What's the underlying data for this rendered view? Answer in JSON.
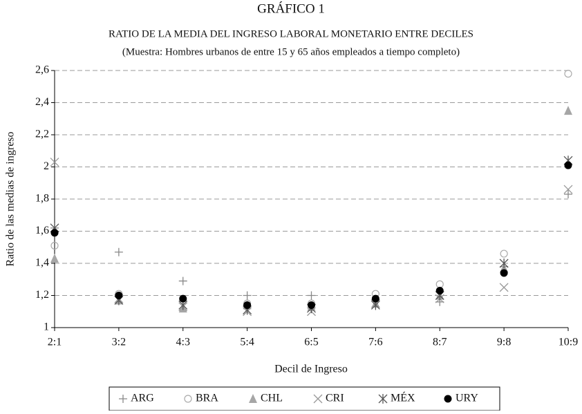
{
  "chart_data": {
    "type": "scatter",
    "title": "GRÁFICO 1",
    "subtitle": "RATIO DE LA MEDIA DEL INGRESO LABORAL MONETARIO ENTRE DECILES",
    "note": "(Muestra: Hombres urbanos de entre 15 y 65 años empleados a tiempo completo)",
    "x_label": "Decil de Ingreso",
    "y_label": "Ratio de las medias de ingreso",
    "categories": [
      "2:1",
      "3:2",
      "4:3",
      "5:4",
      "6:5",
      "7:6",
      "8:7",
      "9:8",
      "10:9"
    ],
    "series": [
      {
        "name": "ARG",
        "color": "#888888",
        "marker": "plus",
        "values": [
          1.62,
          1.47,
          1.29,
          1.2,
          1.2,
          1.17,
          1.16,
          1.38,
          1.83
        ]
      },
      {
        "name": "BRA",
        "color": "#aaaaaa",
        "marker": "circle-open",
        "values": [
          1.51,
          1.21,
          1.17,
          1.15,
          1.15,
          1.21,
          1.27,
          1.46,
          2.58
        ]
      },
      {
        "name": "CHL",
        "color": "#a6a6a6",
        "marker": "triangle",
        "values": [
          1.43,
          1.17,
          1.12,
          1.14,
          1.13,
          1.15,
          1.2,
          1.37,
          2.35
        ]
      },
      {
        "name": "CRI",
        "color": "#999999",
        "marker": "cross",
        "values": [
          2.03,
          1.18,
          1.13,
          1.1,
          1.1,
          1.15,
          1.18,
          1.25,
          1.86
        ]
      },
      {
        "name": "MÉX",
        "color": "#555555",
        "marker": "asterisk",
        "values": [
          1.62,
          1.17,
          1.14,
          1.11,
          1.12,
          1.14,
          1.2,
          1.4,
          2.04
        ]
      },
      {
        "name": "URY",
        "color": "#000000",
        "marker": "circle",
        "values": [
          1.59,
          1.2,
          1.18,
          1.14,
          1.14,
          1.18,
          1.23,
          1.34,
          2.01
        ]
      }
    ],
    "ylim": [
      1,
      2.6
    ],
    "yticks": [
      1,
      {
        "value": 1.2,
        "label": "1,2"
      },
      {
        "value": 1.4,
        "label": "1,4"
      },
      {
        "value": 1.6,
        "label": "1,6"
      },
      {
        "value": 1.8,
        "label": "1,8"
      },
      2,
      {
        "value": 2.2,
        "label": "2,2"
      },
      {
        "value": 2.4,
        "label": "2,4"
      },
      {
        "value": 2.6,
        "label": "2,6"
      }
    ],
    "grid": true,
    "legend": "bottom"
  }
}
